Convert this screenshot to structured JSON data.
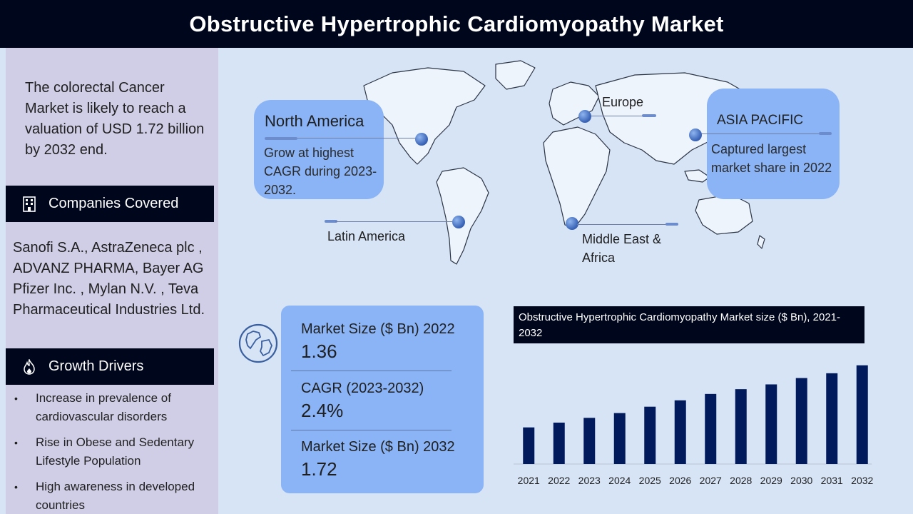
{
  "header": {
    "title": "Obstructive Hypertrophic Cardiomyopathy Market"
  },
  "sidebar": {
    "intro": "The colorectal Cancer Market  is likely to reach a valuation of USD 1.72 billion by 2032 end.",
    "companies_heading": "Companies Covered",
    "companies_icon": "building-icon",
    "companies_text": "Sanofi S.A., AstraZeneca plc , ADVANZ PHARMA, Bayer AG Pfizer Inc. , Mylan N.V. , Teva Pharmaceutical Industries Ltd.",
    "drivers_heading": "Growth Drivers",
    "drivers_icon": "flame-icon",
    "drivers": [
      "Increase in prevalence of cardiovascular disorders",
      "Rise in Obese and Sedentary Lifestyle Population",
      "High awareness in developed countries"
    ]
  },
  "regions": {
    "north_america": {
      "title": "North America",
      "text": "Grow at highest CAGR during 2023-2032."
    },
    "asia_pacific": {
      "title": "ASIA PACIFIC",
      "text": "Captured largest market share in 2022"
    },
    "europe": "Europe",
    "latin_america": "Latin America",
    "mea": [
      "Middle East &",
      "Africa"
    ]
  },
  "stats": [
    {
      "label": "Market Size ($ Bn) 2022",
      "value": "1.36"
    },
    {
      "label": "CAGR (2023-2032)",
      "value": "2.4%"
    },
    {
      "label": "Market Size ($ Bn) 2032",
      "value": "1.72"
    }
  ],
  "colors": {
    "header_bg": "#00061c",
    "sidebar_bg": "#d0cee6",
    "card_bg": "#8ab4f6",
    "bar": "#001a5c",
    "page_bg": "#d6e4f6"
  },
  "chart_data": {
    "type": "bar",
    "title": "Obstructive Hypertrophic Cardiomyopathy Market size ($ Bn), 2021-2032",
    "categories": [
      "2021",
      "2022",
      "2023",
      "2024",
      "2025",
      "2026",
      "2027",
      "2028",
      "2029",
      "2030",
      "2031",
      "2032"
    ],
    "values": [
      1.33,
      1.36,
      1.39,
      1.42,
      1.46,
      1.5,
      1.54,
      1.57,
      1.6,
      1.64,
      1.67,
      1.72
    ],
    "xlabel": "",
    "ylabel": "",
    "ylim": [
      1.1,
      1.75
    ],
    "grid": false,
    "legend": "none"
  }
}
